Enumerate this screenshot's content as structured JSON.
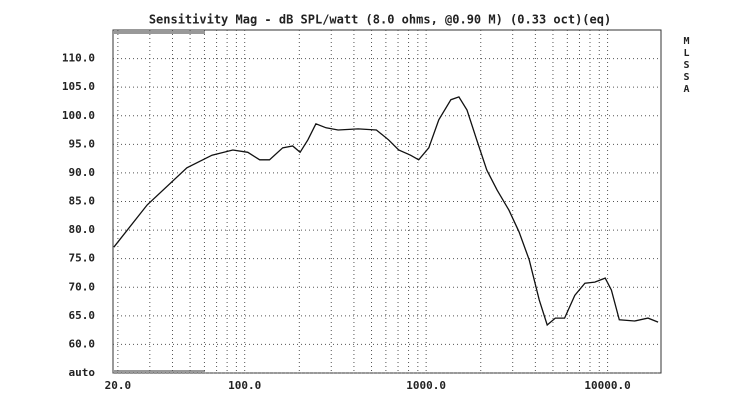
{
  "chart_data": {
    "type": "line",
    "title": "Sensitivity Mag - dB SPL/watt (8.0 ohms, @0.90 M) (0.33 oct)(eq)",
    "side_label": "MLSSA",
    "x": [
      19,
      29,
      48,
      66,
      86,
      104,
      121,
      137,
      162,
      184,
      202,
      223,
      247,
      281,
      327,
      422,
      532,
      620,
      706,
      820,
      910,
      1034,
      1175,
      1370,
      1516,
      1680,
      1900,
      2160,
      2460,
      2860,
      3250,
      3700,
      4200,
      4650,
      5150,
      5800,
      6600,
      7500,
      8500,
      9700,
      10500,
      11600,
      14100,
      16700,
      19000
    ],
    "series": [
      {
        "name": "Sensitivity",
        "color": "#111111",
        "values": [
          77,
          84.4,
          90.9,
          93.1,
          94,
          93.6,
          92.3,
          92.3,
          94.4,
          94.7,
          93.6,
          95.8,
          98.6,
          97.9,
          97.5,
          97.7,
          97.5,
          95.8,
          94,
          93.1,
          92.3,
          94.4,
          99.3,
          102.8,
          103.3,
          101,
          95.8,
          90.5,
          87,
          83.5,
          79.7,
          74.8,
          67.8,
          63.4,
          64.6,
          64.6,
          68.6,
          70.7,
          70.9,
          71.6,
          69.5,
          64.3,
          64.1,
          64.6,
          63.9
        ]
      }
    ],
    "xlim": [
      18.8,
      19700
    ],
    "xscale": "log",
    "xticks": [
      {
        "value": 20,
        "label": "20.0"
      },
      {
        "value": 100,
        "label": "100.0"
      },
      {
        "value": 1000,
        "label": "1000.0"
      },
      {
        "value": 10000,
        "label": "10000.0"
      }
    ],
    "xminorticks": [
      30,
      40,
      50,
      60,
      70,
      80,
      90,
      200,
      300,
      400,
      500,
      600,
      700,
      800,
      900,
      2000,
      3000,
      4000,
      5000,
      6000,
      7000,
      8000,
      9000
    ],
    "ylim": [
      55,
      115
    ],
    "yticks": [
      {
        "value": 55,
        "label": "auto"
      },
      {
        "value": 60,
        "label": "60.0"
      },
      {
        "value": 65,
        "label": "65.0"
      },
      {
        "value": 70,
        "label": "70.0"
      },
      {
        "value": 75,
        "label": "75.0"
      },
      {
        "value": 80,
        "label": "80.0"
      },
      {
        "value": 85,
        "label": "85.0"
      },
      {
        "value": 90,
        "label": "90.0"
      },
      {
        "value": 95,
        "label": "95.0"
      },
      {
        "value": 100,
        "label": "100.0"
      },
      {
        "value": 105,
        "label": "105.0"
      },
      {
        "value": 110,
        "label": "110.0"
      }
    ],
    "grid": true
  }
}
